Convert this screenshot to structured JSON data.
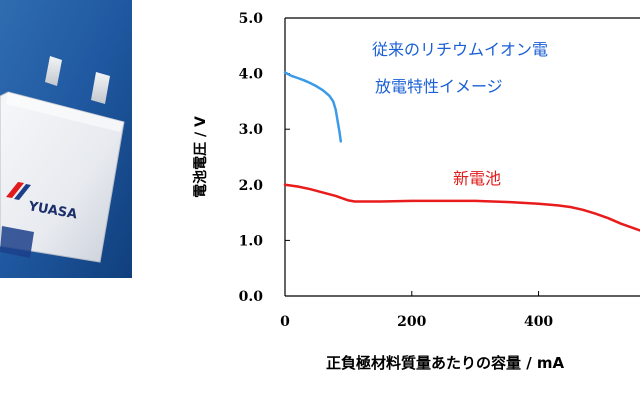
{
  "photo": {
    "brand_text": "YUASA"
  },
  "chart_data": {
    "type": "line",
    "xlabel": "正負極材料質量あたりの容量 / mA",
    "ylabel": "電池電圧 / V",
    "xlim": [
      0,
      560
    ],
    "ylim": [
      0,
      5
    ],
    "xticks": [
      0,
      200,
      400
    ],
    "yticks": [
      "0.0",
      "1.0",
      "2.0",
      "3.0",
      "4.0",
      "5.0"
    ],
    "grid": false,
    "annotations": [
      {
        "text": "従来のリチウムイオン電",
        "color": "#1a5fd6"
      },
      {
        "text": "放電特性イメージ",
        "color": "#1a5fd6"
      },
      {
        "text": "新電池",
        "color": "#e11b1b"
      }
    ],
    "series": [
      {
        "color": "#3b9be8",
        "x": [
          0,
          10,
          20,
          30,
          40,
          50,
          60,
          70,
          76,
          80,
          83,
          86,
          88
        ],
        "y": [
          4.02,
          3.96,
          3.92,
          3.88,
          3.83,
          3.77,
          3.7,
          3.6,
          3.5,
          3.35,
          3.15,
          2.95,
          2.78
        ]
      },
      {
        "color": "#e81c1c",
        "x": [
          0,
          20,
          40,
          60,
          80,
          100,
          110,
          150,
          200,
          250,
          300,
          350,
          400,
          430,
          450,
          470,
          490,
          510,
          530,
          545,
          560
        ],
        "y": [
          2.0,
          1.97,
          1.92,
          1.86,
          1.8,
          1.72,
          1.7,
          1.7,
          1.71,
          1.71,
          1.71,
          1.69,
          1.66,
          1.63,
          1.6,
          1.55,
          1.48,
          1.4,
          1.3,
          1.24,
          1.18
        ]
      }
    ]
  }
}
